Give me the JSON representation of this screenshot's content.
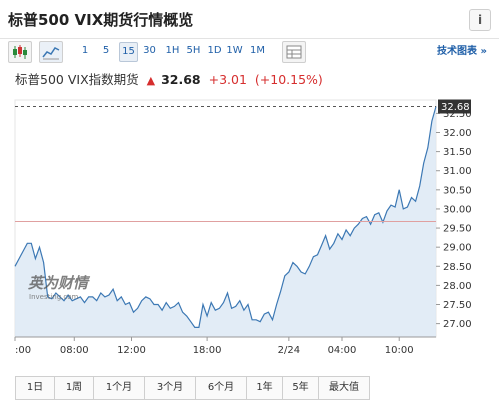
{
  "header": {
    "title": "标普500 VIX期货行情概览",
    "info_label": "i"
  },
  "toolbar": {
    "chart_type_icons": [
      "candlestick-icon",
      "area-chart-icon"
    ],
    "intervals": [
      "1",
      "5",
      "15",
      "30",
      "1H",
      "5H",
      "1D",
      "1W",
      "1M"
    ],
    "active_interval": "15",
    "table_icon": "table-icon",
    "tech_link": "技术图表 »"
  },
  "quote": {
    "name": "标普500 VIX指数期货",
    "direction": "▲",
    "price": "32.68",
    "change": "+3.01",
    "change_pct": "(+10.15%)"
  },
  "watermark": {
    "brand": "英为财情",
    "sub": "Investing.com"
  },
  "chart_data": {
    "type": "area",
    "interval": "15",
    "x_tick_labels": [
      ":00",
      "08:00",
      "12:00",
      "18:00",
      "2/24",
      "04:00",
      "10:00"
    ],
    "y_ticks": [
      27.0,
      27.5,
      28.0,
      28.5,
      29.0,
      29.5,
      30.0,
      30.5,
      31.0,
      31.5,
      32.0,
      32.5
    ],
    "ylim": [
      26.65,
      32.85
    ],
    "last_price_label": "32.68",
    "reference_line": 29.67,
    "colors": {
      "line": "#3c78b4",
      "fill": "#dde9f4",
      "reference": "#e0a0a0",
      "last_line": "#555555",
      "label_bg": "#333333"
    },
    "x": [
      0,
      1,
      2,
      3,
      4,
      5,
      6,
      7,
      8,
      9,
      10,
      11,
      12,
      13,
      14,
      15,
      16,
      17,
      18,
      19,
      20,
      21,
      22,
      23,
      24,
      25,
      26,
      27,
      28,
      29,
      30,
      31,
      32,
      33,
      34,
      35,
      36,
      37,
      38,
      39,
      40,
      41,
      42,
      43,
      44,
      45,
      46,
      47,
      48,
      49,
      50,
      51,
      52,
      53,
      54,
      55,
      56,
      57,
      58,
      59,
      60,
      61,
      62,
      63,
      64,
      65,
      66,
      67,
      68,
      69,
      70,
      71,
      72,
      73,
      74,
      75,
      76,
      77,
      78,
      79,
      80,
      81,
      82,
      83,
      84,
      85,
      86,
      87,
      88,
      89,
      90,
      91,
      92,
      93,
      94,
      95,
      96,
      97,
      98,
      99,
      100,
      101,
      102,
      103
    ],
    "values": [
      28.5,
      28.7,
      28.9,
      29.1,
      29.1,
      28.7,
      29.0,
      28.6,
      27.7,
      27.65,
      27.8,
      27.7,
      27.6,
      27.75,
      27.6,
      27.65,
      27.7,
      27.55,
      27.7,
      27.7,
      27.6,
      27.8,
      27.7,
      27.75,
      27.9,
      27.6,
      27.7,
      27.5,
      27.55,
      27.3,
      27.4,
      27.6,
      27.7,
      27.65,
      27.5,
      27.5,
      27.35,
      27.55,
      27.4,
      27.45,
      27.55,
      27.3,
      27.2,
      27.05,
      26.9,
      26.9,
      27.5,
      27.2,
      27.55,
      27.35,
      27.4,
      27.55,
      27.8,
      27.4,
      27.45,
      27.6,
      27.35,
      27.5,
      27.1,
      27.1,
      27.05,
      27.25,
      27.3,
      27.1,
      27.5,
      27.85,
      28.25,
      28.35,
      28.6,
      28.5,
      28.35,
      28.3,
      28.5,
      28.75,
      28.8,
      29.05,
      29.3,
      28.95,
      29.1,
      29.35,
      29.2,
      29.45,
      29.3,
      29.5,
      29.6,
      29.75,
      29.8,
      29.6,
      29.85,
      29.9,
      29.65,
      29.95,
      30.1,
      30.05,
      30.5,
      30.0,
      30.05,
      30.3,
      30.2,
      30.6,
      31.2,
      31.6,
      32.3,
      32.68
    ]
  },
  "ranges": [
    "1日",
    "1周",
    "1个月",
    "3个月",
    "6个月",
    "1年",
    "5年",
    "最大值"
  ]
}
